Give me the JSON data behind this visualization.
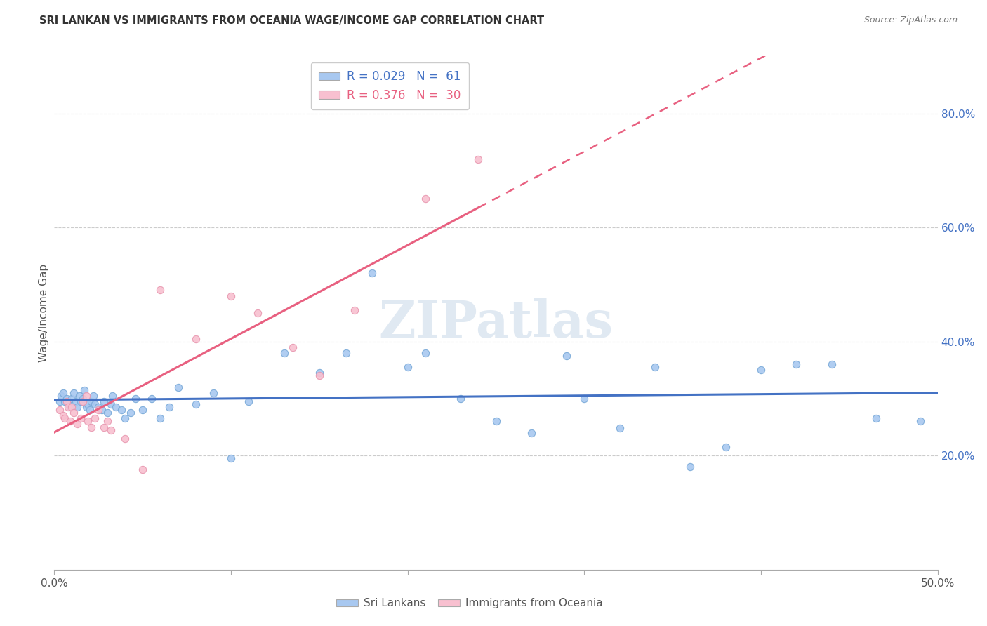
{
  "title": "SRI LANKAN VS IMMIGRANTS FROM OCEANIA WAGE/INCOME GAP CORRELATION CHART",
  "source": "Source: ZipAtlas.com",
  "ylabel": "Wage/Income Gap",
  "xmin": 0.0,
  "xmax": 0.5,
  "ymin": 0.0,
  "ymax": 0.9,
  "right_yticks": [
    0.2,
    0.4,
    0.6,
    0.8
  ],
  "right_yticklabels": [
    "20.0%",
    "40.0%",
    "60.0%",
    "80.0%"
  ],
  "bottom_xticks": [
    0.0,
    0.1,
    0.2,
    0.3,
    0.4,
    0.5
  ],
  "bottom_xticklabels": [
    "0.0%",
    "",
    "",
    "",
    "",
    "50.0%"
  ],
  "blue_color": "#a8c8f0",
  "blue_edge": "#7aaad8",
  "pink_color": "#f8c0d0",
  "pink_edge": "#e898b0",
  "blue_line_color": "#4472c4",
  "pink_line_color": "#e86080",
  "legend_R1": "R = 0.029",
  "legend_N1": "N =  61",
  "legend_R2": "R = 0.376",
  "legend_N2": "N =  30",
  "sri_lankans_label": "Sri Lankans",
  "oceania_label": "Immigrants from Oceania",
  "watermark": "ZIPatlas",
  "blue_x": [
    0.003,
    0.004,
    0.005,
    0.006,
    0.007,
    0.008,
    0.009,
    0.01,
    0.011,
    0.012,
    0.013,
    0.014,
    0.015,
    0.016,
    0.017,
    0.018,
    0.019,
    0.02,
    0.021,
    0.022,
    0.023,
    0.025,
    0.027,
    0.028,
    0.03,
    0.032,
    0.033,
    0.035,
    0.038,
    0.04,
    0.043,
    0.046,
    0.05,
    0.055,
    0.06,
    0.065,
    0.07,
    0.08,
    0.09,
    0.1,
    0.11,
    0.13,
    0.15,
    0.165,
    0.18,
    0.2,
    0.21,
    0.23,
    0.25,
    0.27,
    0.29,
    0.3,
    0.32,
    0.34,
    0.36,
    0.38,
    0.4,
    0.42,
    0.44,
    0.465,
    0.49
  ],
  "blue_y": [
    0.295,
    0.305,
    0.31,
    0.295,
    0.3,
    0.29,
    0.285,
    0.3,
    0.31,
    0.295,
    0.285,
    0.305,
    0.295,
    0.3,
    0.315,
    0.285,
    0.29,
    0.28,
    0.295,
    0.305,
    0.29,
    0.285,
    0.28,
    0.295,
    0.275,
    0.29,
    0.305,
    0.285,
    0.28,
    0.265,
    0.275,
    0.3,
    0.28,
    0.3,
    0.265,
    0.285,
    0.32,
    0.29,
    0.31,
    0.195,
    0.295,
    0.38,
    0.345,
    0.38,
    0.52,
    0.355,
    0.38,
    0.3,
    0.26,
    0.24,
    0.375,
    0.3,
    0.248,
    0.355,
    0.18,
    0.215,
    0.35,
    0.36,
    0.36,
    0.265,
    0.26
  ],
  "pink_x": [
    0.003,
    0.005,
    0.006,
    0.007,
    0.008,
    0.009,
    0.01,
    0.011,
    0.013,
    0.015,
    0.016,
    0.018,
    0.019,
    0.021,
    0.023,
    0.025,
    0.028,
    0.03,
    0.032,
    0.04,
    0.05,
    0.06,
    0.08,
    0.1,
    0.115,
    0.135,
    0.15,
    0.17,
    0.21,
    0.24
  ],
  "pink_y": [
    0.28,
    0.27,
    0.265,
    0.295,
    0.285,
    0.26,
    0.285,
    0.275,
    0.255,
    0.265,
    0.295,
    0.305,
    0.26,
    0.25,
    0.265,
    0.28,
    0.25,
    0.26,
    0.245,
    0.23,
    0.175,
    0.49,
    0.405,
    0.48,
    0.45,
    0.39,
    0.34,
    0.455,
    0.65,
    0.72
  ]
}
